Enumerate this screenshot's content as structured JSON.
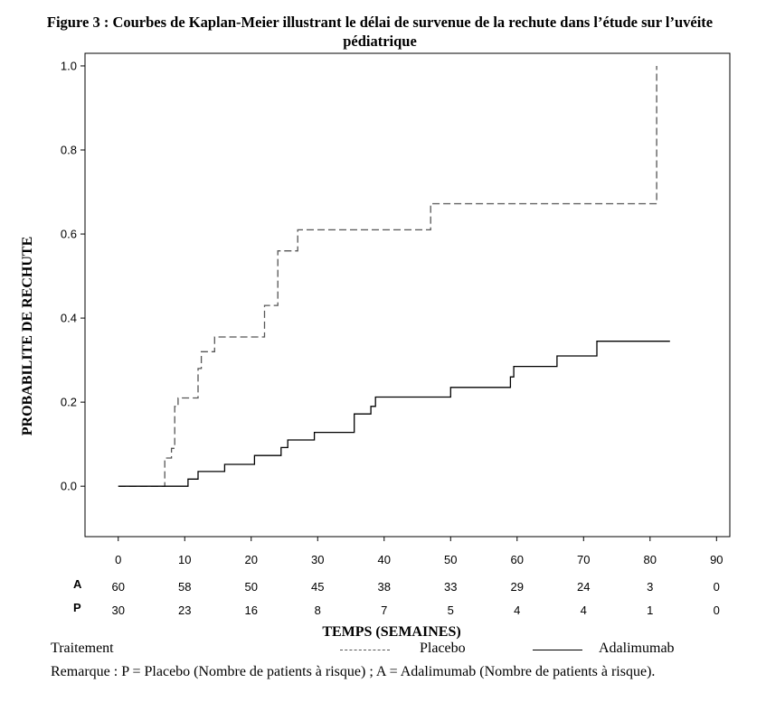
{
  "figure": {
    "title": "Figure 3 : Courbes de Kaplan-Meier illustrant le délai de survenue de la rechute dans l’étude sur l’uvéite pédiatrique"
  },
  "chart_data": {
    "type": "line",
    "title": "Figure 3 : Courbes de Kaplan-Meier illustrant le délai de survenue de la rechute dans l’étude sur l’uvéite pédiatrique",
    "xlabel": "TEMPS (SEMAINES)",
    "ylabel": "PROBABILITE DE RECHUTE",
    "xlim": [
      -5,
      92
    ],
    "ylim": [
      -0.12,
      1.03
    ],
    "xticks": [
      0,
      10,
      20,
      30,
      40,
      50,
      60,
      70,
      80,
      90
    ],
    "yticks": [
      "0.0",
      "0.2",
      "0.4",
      "0.6",
      "0.8",
      "1.0"
    ],
    "grid": false,
    "step": true,
    "series": [
      {
        "name": "Placebo",
        "style": "dashed",
        "color": "#555555",
        "points": [
          [
            0,
            0.0
          ],
          [
            7,
            0.0
          ],
          [
            7,
            0.067
          ],
          [
            8,
            0.067
          ],
          [
            8,
            0.09
          ],
          [
            8.5,
            0.09
          ],
          [
            8.5,
            0.19
          ],
          [
            9,
            0.19
          ],
          [
            9,
            0.21
          ],
          [
            12,
            0.21
          ],
          [
            12,
            0.28
          ],
          [
            12.5,
            0.28
          ],
          [
            12.5,
            0.32
          ],
          [
            14.5,
            0.32
          ],
          [
            14.5,
            0.355
          ],
          [
            22,
            0.355
          ],
          [
            22,
            0.43
          ],
          [
            24,
            0.43
          ],
          [
            24,
            0.56
          ],
          [
            27,
            0.56
          ],
          [
            27,
            0.61
          ],
          [
            47,
            0.61
          ],
          [
            47,
            0.672
          ],
          [
            81,
            0.672
          ],
          [
            81,
            1.0
          ]
        ]
      },
      {
        "name": "Adalimumab",
        "style": "solid",
        "color": "#000000",
        "points": [
          [
            0,
            0.0
          ],
          [
            10.5,
            0.0
          ],
          [
            10.5,
            0.017
          ],
          [
            12,
            0.017
          ],
          [
            12,
            0.035
          ],
          [
            16,
            0.035
          ],
          [
            16,
            0.052
          ],
          [
            20.5,
            0.052
          ],
          [
            20.5,
            0.073
          ],
          [
            24.5,
            0.073
          ],
          [
            24.5,
            0.092
          ],
          [
            25.5,
            0.092
          ],
          [
            25.5,
            0.11
          ],
          [
            29.5,
            0.11
          ],
          [
            29.5,
            0.128
          ],
          [
            35.5,
            0.128
          ],
          [
            35.5,
            0.172
          ],
          [
            38,
            0.172
          ],
          [
            38,
            0.19
          ],
          [
            38.7,
            0.19
          ],
          [
            38.7,
            0.212
          ],
          [
            50,
            0.212
          ],
          [
            50,
            0.235
          ],
          [
            59,
            0.235
          ],
          [
            59,
            0.26
          ],
          [
            59.5,
            0.26
          ],
          [
            59.5,
            0.285
          ],
          [
            66,
            0.285
          ],
          [
            66,
            0.31
          ],
          [
            72,
            0.31
          ],
          [
            72,
            0.345
          ],
          [
            83,
            0.345
          ]
        ]
      }
    ],
    "risk_table": {
      "times": [
        0,
        10,
        20,
        30,
        40,
        50,
        60,
        70,
        80,
        90
      ],
      "rows": [
        {
          "key": "A",
          "counts": [
            "60",
            "58",
            "50",
            "45",
            "38",
            "33",
            "29",
            "24",
            "3",
            "0"
          ]
        },
        {
          "key": "P",
          "counts": [
            "30",
            "23",
            "16",
            "8",
            "7",
            "5",
            "4",
            "4",
            "1",
            "0"
          ]
        }
      ]
    }
  },
  "legend": {
    "heading": "Traitement",
    "placebo_label": "Placebo",
    "adalimumab_label": "Adalimumab"
  },
  "note": "Remarque : P = Placebo (Nombre de patients à risque) ; A = Adalimumab (Nombre de patients à risque)."
}
